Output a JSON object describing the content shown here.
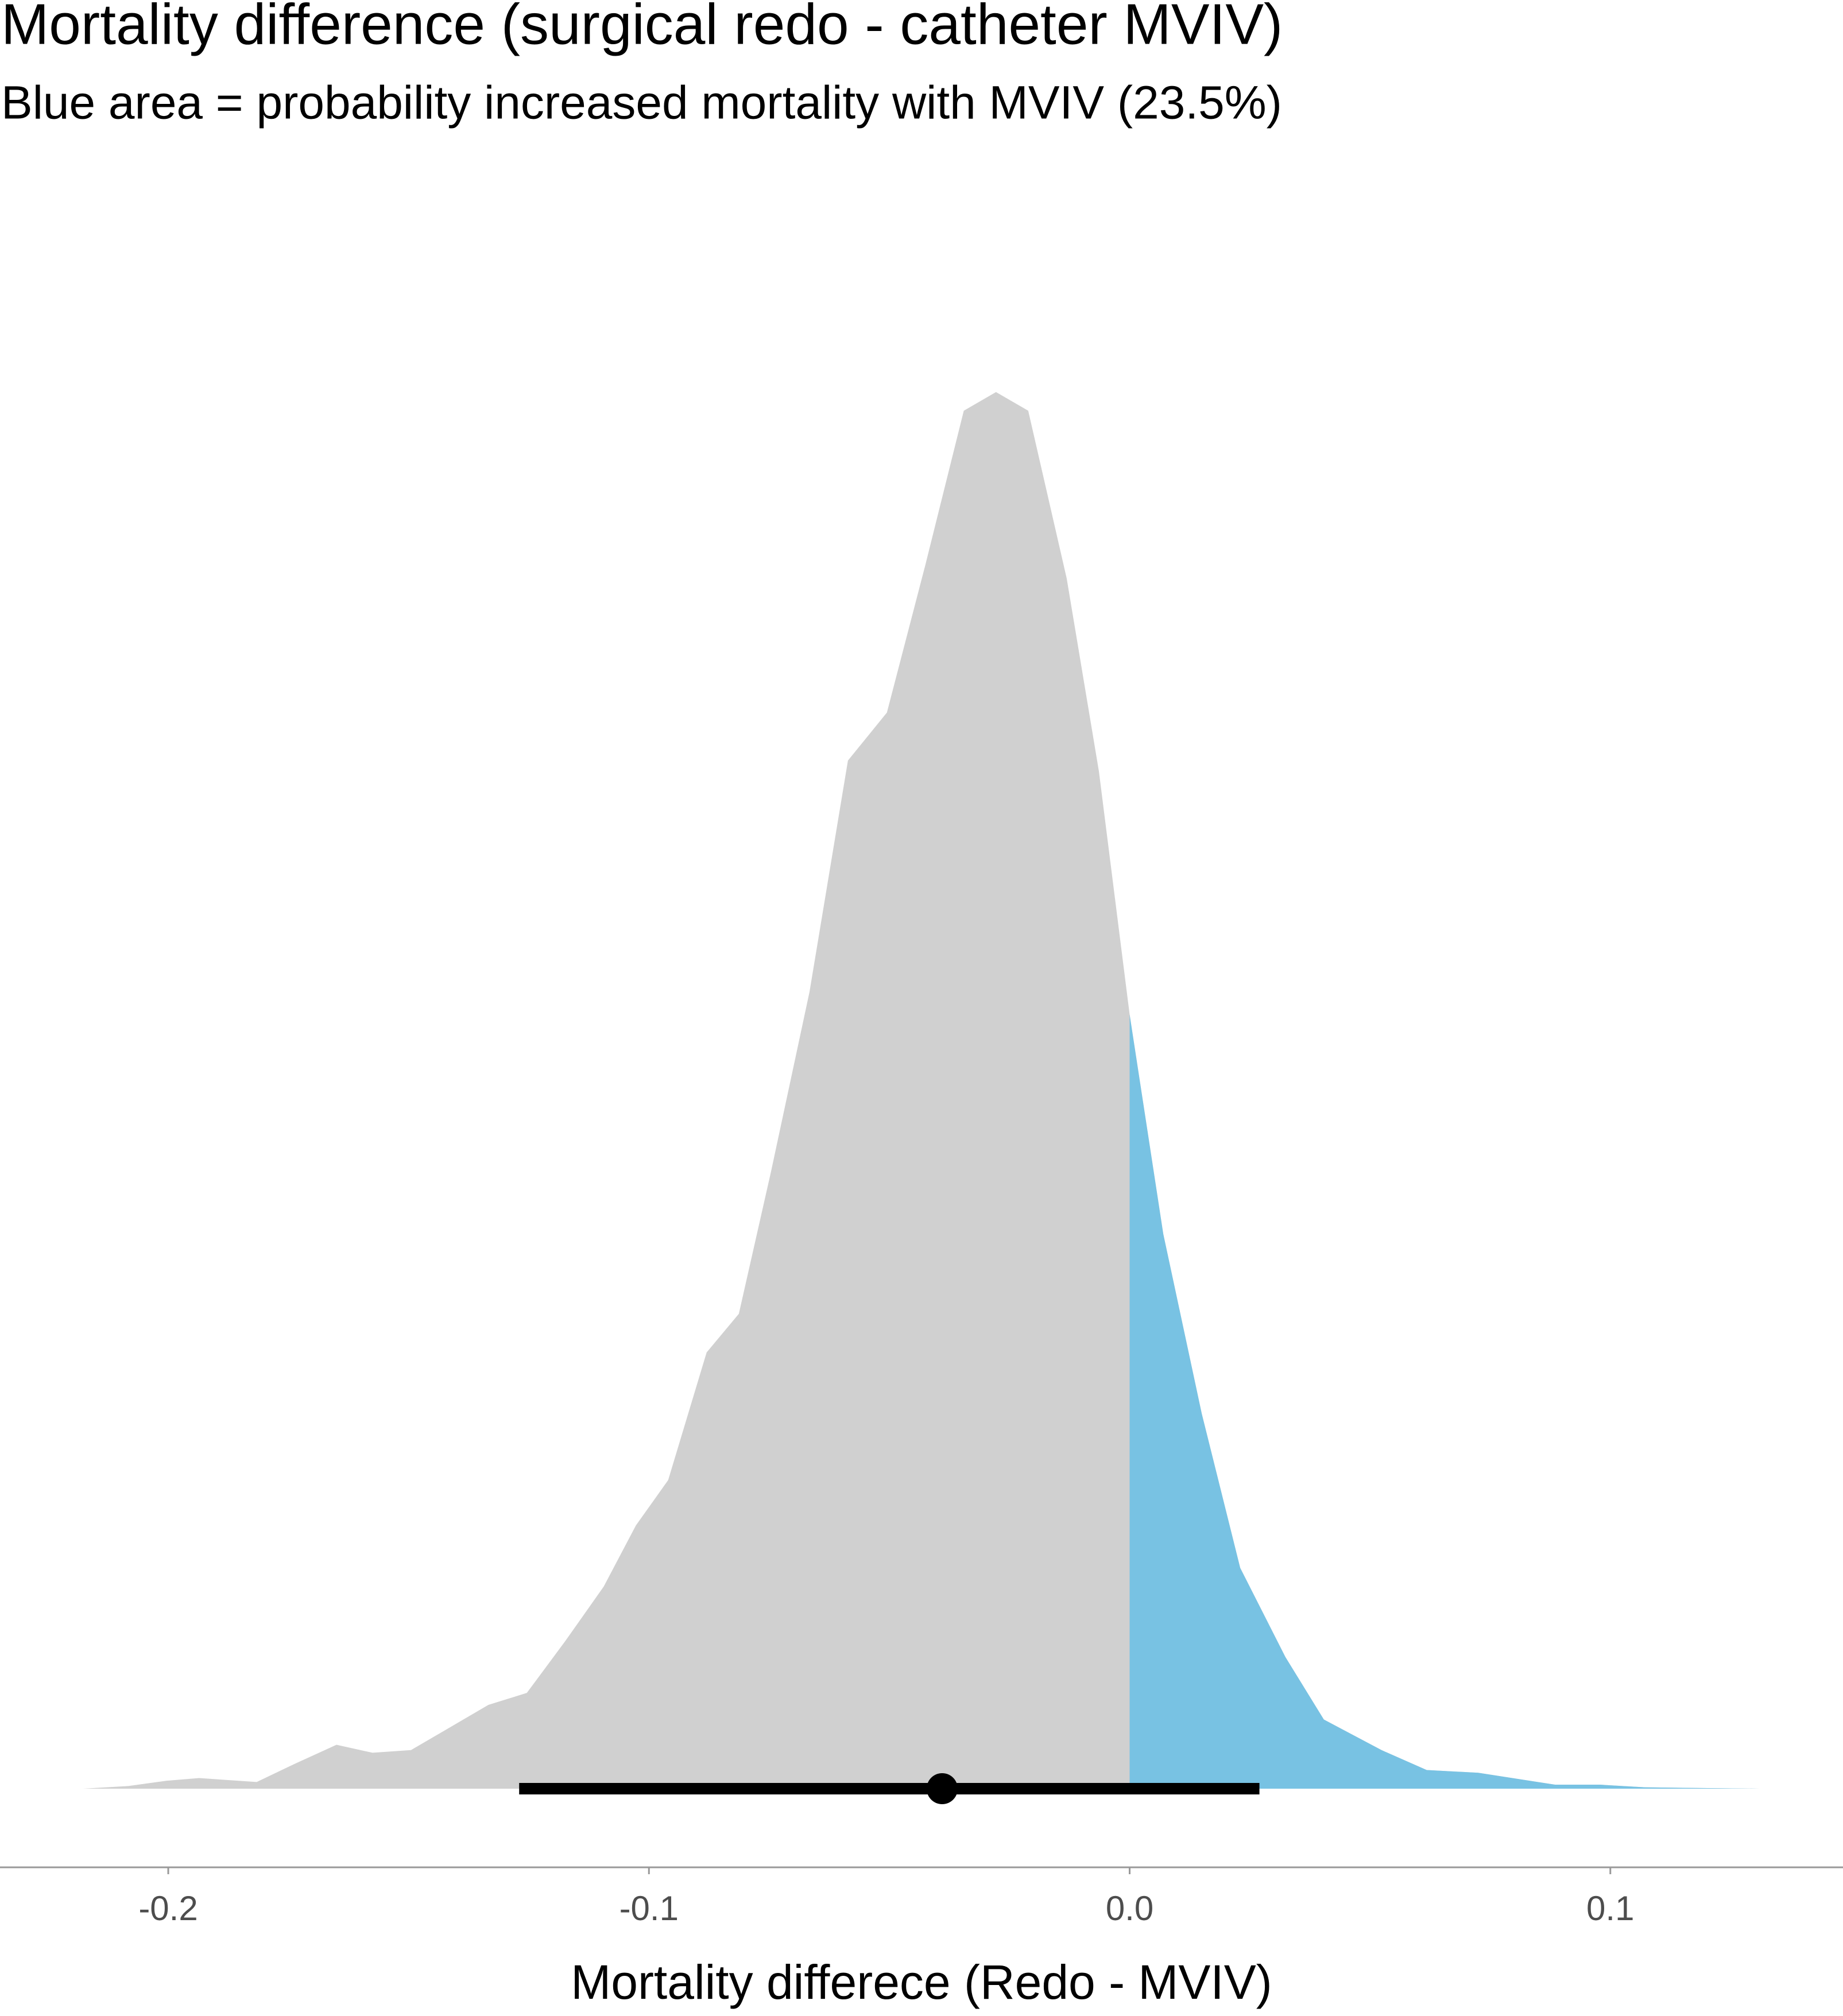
{
  "chart_data": {
    "type": "density",
    "title": "Mortality difference (surgical redo - catheter MVIV)",
    "subtitle": "Blue area = probability increased mortality with MVIV (23.5%)",
    "x_label": "Mortality differece (Redo - MVIV)",
    "x": [
      -0.2177,
      -0.2083,
      -0.2003,
      -0.1936,
      -0.1816,
      -0.1735,
      -0.165,
      -0.1575,
      -0.1495,
      -0.1334,
      -0.1254,
      -0.1174,
      -0.1094,
      -0.1027,
      -0.096,
      -0.088,
      -0.0813,
      -0.0746,
      -0.0666,
      -0.0586,
      -0.0505,
      -0.0425,
      -0.0345,
      -0.0278,
      -0.0211,
      -0.0131,
      -0.0064,
      0,
      0.007,
      0.015,
      0.023,
      0.0324,
      0.0404,
      0.0524,
      0.0618,
      0.0725,
      0.0885,
      0.0979,
      0.1072,
      0.131
    ],
    "density": [
      0,
      0.02,
      0.06,
      0.08,
      0.05,
      0.19,
      0.33,
      0.27,
      0.29,
      0.63,
      0.72,
      1.11,
      1.52,
      1.98,
      2.32,
      3.28,
      3.57,
      4.64,
      5.99,
      7.73,
      8.09,
      9.2,
      10.36,
      10.5,
      10.36,
      9.1,
      7.65,
      5.82,
      4.17,
      2.82,
      1.66,
      0.99,
      0.52,
      0.29,
      0.14,
      0.12,
      0.03,
      0.03,
      0.01,
      0
    ],
    "color": "#d0d0d0",
    "highlight_color": "#78c2e3",
    "highlight_above": 0,
    "interval": {
      "point": -0.039,
      "lower": -0.127,
      "upper": 0.027,
      "color": "#000000"
    },
    "xlim": [
      -0.235,
      0.1484
    ],
    "xticks": [
      -0.2,
      -0.1,
      {
        "value": 0,
        "label": "0.0"
      },
      0.1
    ]
  }
}
